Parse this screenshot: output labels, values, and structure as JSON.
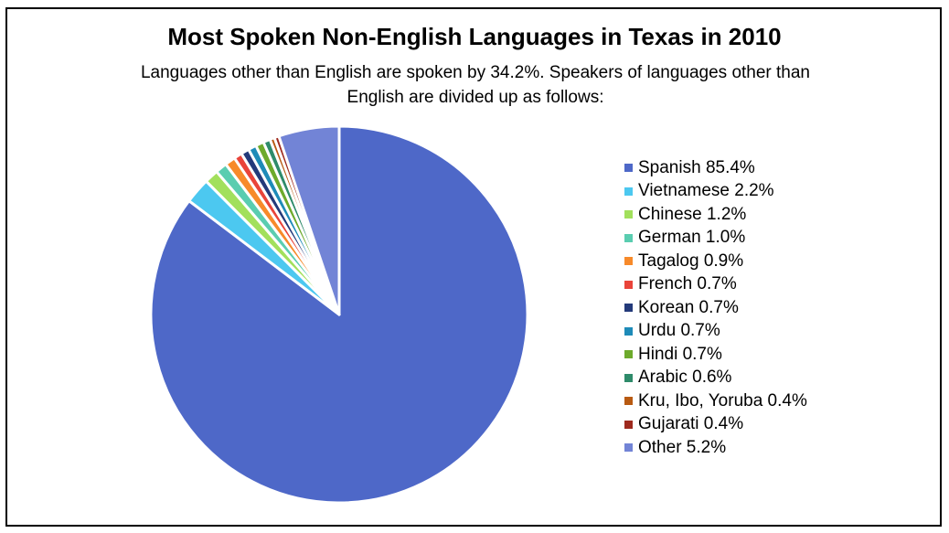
{
  "chart_data": {
    "type": "pie",
    "title": "Most Spoken Non-English Languages in Texas in 2010",
    "subtitle_line1": "Languages other than English are spoken by 34.2%. Speakers of languages other than",
    "subtitle_line2": "English are divided up as follows:",
    "legend_position": "right",
    "slices": [
      {
        "label": "Spanish 85.4%",
        "value": 85.4,
        "color": "#4E68C8"
      },
      {
        "label": "Vietnamese 2.2%",
        "value": 2.2,
        "color": "#4CC8F0"
      },
      {
        "label": "Chinese 1.2%",
        "value": 1.2,
        "color": "#A2E05C"
      },
      {
        "label": "German 1.0%",
        "value": 1.0,
        "color": "#5ACDB0"
      },
      {
        "label": "Tagalog 0.9%",
        "value": 0.9,
        "color": "#F78A2A"
      },
      {
        "label": "French 0.7%",
        "value": 0.7,
        "color": "#E9443A"
      },
      {
        "label": "Korean 0.7%",
        "value": 0.7,
        "color": "#243A7A"
      },
      {
        "label": "Urdu 0.7%",
        "value": 0.7,
        "color": "#1E8BB8"
      },
      {
        "label": "Hindi 0.7%",
        "value": 0.7,
        "color": "#6DAA2C"
      },
      {
        "label": "Arabic 0.6%",
        "value": 0.6,
        "color": "#2E8B6A"
      },
      {
        "label": "Kru, Ibo, Yoruba 0.4%",
        "value": 0.4,
        "color": "#B85A12"
      },
      {
        "label": "Gujarati 0.4%",
        "value": 0.4,
        "color": "#9E2A1E"
      },
      {
        "label": "Other 5.2%",
        "value": 5.2,
        "color": "#7284D6"
      }
    ]
  }
}
